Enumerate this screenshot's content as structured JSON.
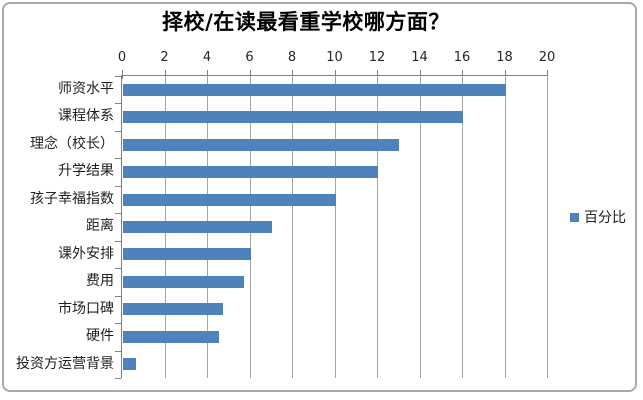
{
  "title": "择校/在读最看重学校哪方面？",
  "legend": {
    "label": "百分比"
  },
  "colors": {
    "bar": "#4f81bd",
    "gridline": "#a6a6a6",
    "axis": "#808080",
    "frame_border": "#a8a8a8",
    "background": "#ffffff",
    "title_text": "#000000",
    "label_text": "#1f1f1f"
  },
  "chart_data": {
    "type": "bar",
    "orientation": "horizontal",
    "title": "择校/在读最看重学校哪方面？",
    "categories": [
      "师资水平",
      "课程体系",
      "理念（校长）",
      "升学结果",
      "孩子幸福指数",
      "距离",
      "课外安排",
      "费用",
      "市场口碑",
      "硬件",
      "投资方运营背景"
    ],
    "series": [
      {
        "name": "百分比",
        "values": [
          18,
          16,
          13,
          12,
          10,
          7,
          6,
          5.7,
          4.7,
          4.5,
          0.6
        ]
      }
    ],
    "xlabel": "",
    "ylabel": "",
    "xlim": [
      0,
      20
    ],
    "xticks": [
      0,
      2,
      4,
      6,
      8,
      10,
      12,
      14,
      16,
      18,
      20
    ],
    "value_axis_position": "top",
    "grid": true,
    "legend_position": "right"
  }
}
